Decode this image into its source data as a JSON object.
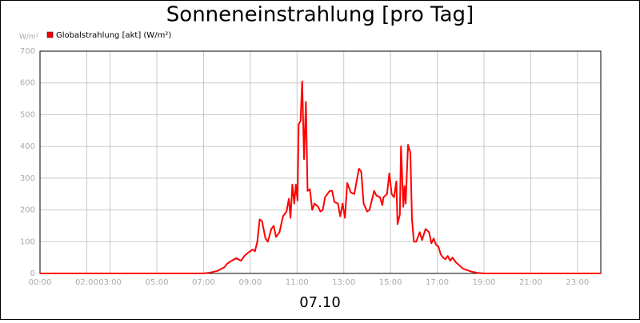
{
  "chart_data": {
    "type": "line",
    "title": "Sonneneinstrahlung [pro Tag]",
    "y_unit": "W/m²",
    "x_label": "07.10",
    "x": [
      0,
      7.0,
      7.3,
      7.6,
      7.9,
      8.0,
      8.2,
      8.4,
      8.6,
      8.75,
      8.9,
      9.1,
      9.2,
      9.3,
      9.4,
      9.5,
      9.65,
      9.75,
      9.9,
      10.0,
      10.1,
      10.25,
      10.4,
      10.55,
      10.65,
      10.72,
      10.8,
      10.88,
      10.95,
      11.02,
      11.07,
      11.15,
      11.22,
      11.3,
      11.38,
      11.45,
      11.55,
      11.65,
      11.75,
      11.9,
      12.0,
      12.1,
      12.2,
      12.4,
      12.5,
      12.6,
      12.75,
      12.85,
      12.95,
      13.05,
      13.15,
      13.3,
      13.45,
      13.55,
      13.65,
      13.75,
      13.85,
      14.0,
      14.1,
      14.3,
      14.4,
      14.55,
      14.65,
      14.7,
      14.85,
      14.95,
      15.05,
      15.15,
      15.25,
      15.3,
      15.4,
      15.45,
      15.55,
      15.6,
      15.65,
      15.75,
      15.85,
      15.92,
      16.0,
      16.1,
      16.25,
      16.35,
      16.5,
      16.65,
      16.75,
      16.85,
      16.95,
      17.05,
      17.15,
      17.25,
      17.35,
      17.45,
      17.55,
      17.65,
      17.8,
      17.95,
      18.1,
      18.3,
      18.5,
      18.7,
      19.0,
      24.0
    ],
    "series": [
      {
        "name": "Globalstrahlung [akt] (W/m²)",
        "color": "#ff0000",
        "values": [
          0,
          0,
          3,
          8,
          20,
          30,
          40,
          48,
          40,
          55,
          65,
          75,
          70,
          100,
          170,
          165,
          110,
          100,
          140,
          150,
          115,
          130,
          180,
          195,
          235,
          175,
          280,
          220,
          280,
          230,
          470,
          480,
          605,
          360,
          540,
          260,
          265,
          200,
          220,
          210,
          195,
          200,
          240,
          260,
          260,
          225,
          220,
          180,
          220,
          175,
          285,
          255,
          250,
          290,
          330,
          320,
          220,
          195,
          200,
          260,
          245,
          240,
          215,
          240,
          250,
          315,
          250,
          240,
          290,
          155,
          185,
          400,
          210,
          275,
          220,
          405,
          380,
          170,
          100,
          100,
          130,
          105,
          140,
          130,
          95,
          110,
          90,
          85,
          60,
          50,
          45,
          55,
          40,
          50,
          35,
          25,
          15,
          10,
          5,
          2,
          0,
          0
        ]
      }
    ],
    "xlim": [
      0,
      24
    ],
    "xticks": [
      {
        "value": 0,
        "label": "00:00"
      },
      {
        "value": 2,
        "label": "02:00"
      },
      {
        "value": 3,
        "label": "03:00"
      },
      {
        "value": 5,
        "label": "05:00"
      },
      {
        "value": 7,
        "label": "07:00"
      },
      {
        "value": 9,
        "label": "09:00"
      },
      {
        "value": 11,
        "label": "11:00"
      },
      {
        "value": 13,
        "label": "13:00"
      },
      {
        "value": 15,
        "label": "15:00"
      },
      {
        "value": 17,
        "label": "17:00"
      },
      {
        "value": 19,
        "label": "19:00"
      },
      {
        "value": 21,
        "label": "21:00"
      },
      {
        "value": 23,
        "label": "23:00"
      }
    ],
    "ylim": [
      0,
      700
    ],
    "yticks": [
      0,
      100,
      200,
      300,
      400,
      500,
      600,
      700
    ],
    "grid": true
  }
}
